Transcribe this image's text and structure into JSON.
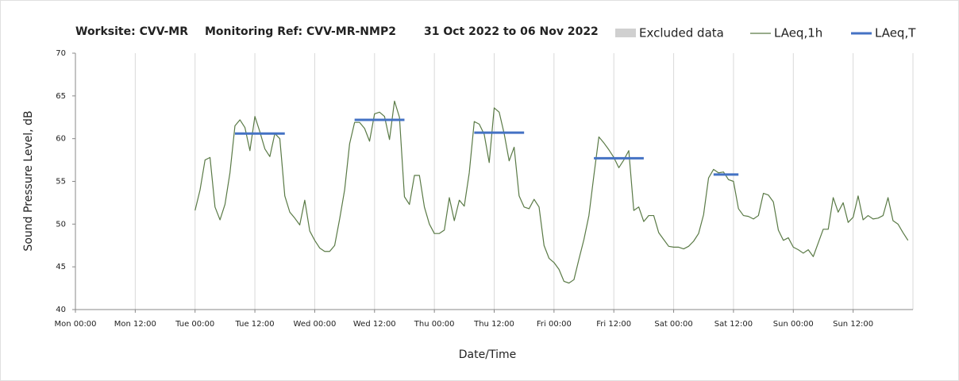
{
  "chart_data": {
    "type": "line",
    "title_parts": [
      "Worksite: CVV-MR",
      "Monitoring Ref: CVV-MR-NMP2",
      "31 Oct 2022 to 06 Nov 2022"
    ],
    "y_label": "Sound Pressure Level, dB",
    "x_label": "Date/Time",
    "xlim": [
      0,
      168
    ],
    "ylim": [
      40,
      70
    ],
    "yticks": [
      40,
      45,
      50,
      55,
      60,
      65,
      70
    ],
    "xticks": [
      {
        "value": 0,
        "label": "Mon 00:00"
      },
      {
        "value": 12,
        "label": "Mon 12:00"
      },
      {
        "value": 24,
        "label": "Tue 00:00"
      },
      {
        "value": 36,
        "label": "Tue 12:00"
      },
      {
        "value": 48,
        "label": "Wed 00:00"
      },
      {
        "value": 60,
        "label": "Wed 12:00"
      },
      {
        "value": 72,
        "label": "Thu 00:00"
      },
      {
        "value": 84,
        "label": "Thu 12:00"
      },
      {
        "value": 96,
        "label": "Fri 00:00"
      },
      {
        "value": 108,
        "label": "Fri 12:00"
      },
      {
        "value": 120,
        "label": "Sat 00:00"
      },
      {
        "value": 132,
        "label": "Sat 12:00"
      },
      {
        "value": 144,
        "label": "Sun 00:00"
      },
      {
        "value": 156,
        "label": "Sun 12:00"
      }
    ],
    "grid": true,
    "series": [
      {
        "name": "Excluded data",
        "color": "#d0d0d0",
        "style": "box",
        "x": [],
        "values": []
      },
      {
        "name": "LAeq,1h",
        "color": "#5a7a46",
        "style": "thin",
        "x": [
          24,
          25,
          26,
          27,
          28,
          29,
          30,
          31,
          32,
          33,
          34,
          35,
          36,
          37,
          38,
          39,
          40,
          41,
          42,
          43,
          44,
          45,
          46,
          47,
          48,
          49,
          50,
          51,
          52,
          53,
          54,
          55,
          56,
          57,
          58,
          59,
          60,
          61,
          62,
          63,
          64,
          65,
          66,
          67,
          68,
          69,
          70,
          71,
          72,
          73,
          74,
          75,
          76,
          77,
          78,
          79,
          80,
          81,
          82,
          83,
          84,
          85,
          86,
          87,
          88,
          89,
          90,
          91,
          92,
          93,
          94,
          95,
          96,
          97,
          98,
          99,
          100,
          101,
          102,
          103,
          104,
          105,
          106,
          107,
          108,
          109,
          110,
          111,
          112,
          113,
          114,
          115,
          116,
          117,
          118,
          119,
          120,
          121,
          122,
          123,
          124,
          125,
          126,
          127,
          128,
          129,
          130,
          131,
          132,
          133,
          134,
          135,
          136,
          137,
          138,
          139,
          140,
          141,
          142,
          143,
          144,
          145,
          146,
          147,
          148,
          149,
          150,
          151,
          152,
          153,
          154,
          155,
          156,
          157,
          158,
          159,
          160,
          161,
          162,
          163,
          164,
          165,
          166,
          167
        ],
        "values": [
          51.6,
          54,
          57.5,
          57.8,
          52,
          50.5,
          52.3,
          56,
          61.5,
          62.2,
          61.3,
          58.6,
          62.6,
          60.8,
          58.8,
          57.9,
          60.6,
          60,
          53.3,
          51.4,
          50.7,
          49.9,
          52.8,
          49.2,
          48.1,
          47.2,
          46.8,
          46.8,
          47.5,
          50.6,
          54,
          59.4,
          61.9,
          61.9,
          61.2,
          59.7,
          62.9,
          63.1,
          62.6,
          59.9,
          64.4,
          62.5,
          53.2,
          52.3,
          55.7,
          55.7,
          52,
          50,
          48.9,
          48.9,
          49.3,
          53.1,
          50.4,
          52.8,
          52.1,
          56,
          62,
          61.7,
          60.5,
          57.2,
          63.6,
          63.1,
          60.6,
          57.4,
          59,
          53.3,
          52,
          51.8,
          52.9,
          52,
          47.5,
          46,
          45.5,
          44.7,
          43.3,
          43.1,
          43.5,
          45.9,
          48.2,
          51,
          55.7,
          60.2,
          59.5,
          58.7,
          57.8,
          56.6,
          57.5,
          58.6,
          51.6,
          52,
          50.3,
          51,
          51,
          49,
          48.2,
          47.4,
          47.3,
          47.3,
          47.1,
          47.4,
          48,
          48.9,
          51.1,
          55.4,
          56.4,
          56,
          56.1,
          55.2,
          55,
          51.8,
          51,
          50.9,
          50.6,
          51,
          53.6,
          53.4,
          52.6,
          49.3,
          48.1,
          48.4,
          47.3,
          47,
          46.6,
          47,
          46.2,
          47.8,
          49.4,
          49.4,
          53.1,
          51.4,
          52.5,
          50.2,
          50.8,
          53.3,
          50.5,
          51,
          50.6,
          50.7,
          51,
          53.1,
          50.4,
          50,
          49,
          48.1
        ]
      },
      {
        "name": "LAeq,T",
        "color": "#4472c4",
        "style": "thick",
        "x": [
          32,
          42,
          null,
          56,
          66,
          null,
          80,
          90,
          null,
          104,
          114,
          null,
          128,
          133
        ],
        "values": [
          60.6,
          60.6,
          null,
          62.2,
          62.2,
          null,
          60.7,
          60.7,
          null,
          57.7,
          57.7,
          null,
          55.8,
          55.8
        ]
      }
    ]
  }
}
